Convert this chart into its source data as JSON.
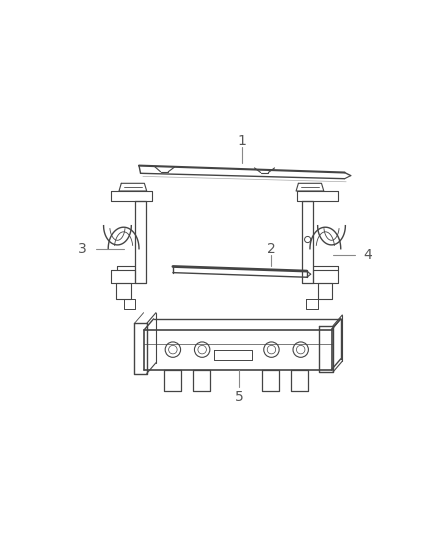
{
  "background_color": "#ffffff",
  "fig_width": 4.38,
  "fig_height": 5.33,
  "dpi": 100,
  "line_color": "#444444",
  "label_color": "#555555",
  "leader_color": "#888888"
}
